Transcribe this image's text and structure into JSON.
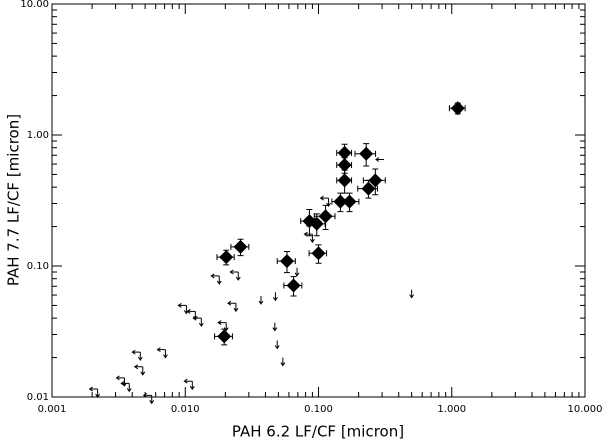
{
  "chart_data": {
    "type": "scatter",
    "xlabel": "PAH 6.2 LF/CF [micron]",
    "ylabel": "PAH 7.7 LF/CF [micron]",
    "xscale": "log",
    "yscale": "log",
    "xlim": [
      0.001,
      10
    ],
    "ylim": [
      0.01,
      10
    ],
    "xticks": [
      0.001,
      {
        "value": 0.01,
        "label": "0.010"
      },
      {
        "value": 0.1,
        "label": "0.100"
      },
      {
        "value": 1,
        "label": "1.000"
      },
      {
        "value": 10,
        "label": "10.000"
      }
    ],
    "yticks": [
      0.01,
      {
        "value": 0.1,
        "label": "0.10"
      },
      {
        "value": 1,
        "label": "1.00"
      },
      {
        "value": 10,
        "label": "10.00"
      }
    ],
    "series": [
      {
        "marker": "diamond",
        "color": "#000000",
        "x": [
          1.11,
          0.157,
          0.228,
          0.157,
          0.157,
          0.267,
          0.237,
          0.146,
          0.171,
          0.113,
          0.0855,
          0.097,
          0.1,
          0.026,
          0.0203,
          0.058,
          0.065,
          0.0196
        ],
        "y": [
          1.6,
          0.73,
          0.72,
          0.59,
          0.45,
          0.45,
          0.39,
          0.31,
          0.31,
          0.24,
          0.22,
          0.21,
          0.125,
          0.14,
          0.117,
          0.109,
          0.071,
          0.029
        ],
        "xerr": [
          0.15,
          0.02,
          0.04,
          0.02,
          0.02,
          0.05,
          0.04,
          0.02,
          0.03,
          0.02,
          0.012,
          0.015,
          0.015,
          0.004,
          0.003,
          0.009,
          0.01,
          0.003
        ],
        "yerr": [
          0.15,
          0.12,
          0.14,
          0.08,
          0.09,
          0.1,
          0.06,
          0.05,
          0.05,
          0.05,
          0.05,
          0.04,
          0.02,
          0.02,
          0.015,
          0.02,
          0.012,
          0.004
        ]
      },
      {
        "marker": "arrow",
        "color": "#000000",
        "x": [
          0.119,
          0.09,
          0.025,
          0.018,
          0.024,
          0.0102,
          0.0119,
          0.0132,
          0.0203,
          0.0071,
          0.0046,
          0.0048,
          0.0035,
          0.0038,
          0.0113,
          0.0022,
          0.0056,
          0.0475,
          0.047,
          0.049,
          0.054,
          0.5,
          0.069,
          0.037,
          0.31
        ],
        "y": [
          0.33,
          0.175,
          0.09,
          0.084,
          0.052,
          0.05,
          0.045,
          0.04,
          0.037,
          0.023,
          0.022,
          0.017,
          0.014,
          0.0127,
          0.0132,
          0.0115,
          0.0103,
          0.063,
          0.037,
          0.027,
          0.02,
          0.066,
          0.097,
          0.059,
          0.65
        ],
        "limit": [
          "xy",
          "xy",
          "xy",
          "xy",
          "xy",
          "xy",
          "xy",
          "xy",
          "xy",
          "xy",
          "xy",
          "xy",
          "xy",
          "xy",
          "xy",
          "xy",
          "xy",
          "y",
          "y",
          "y",
          "y",
          "y",
          "y",
          "y",
          "x"
        ]
      }
    ]
  }
}
